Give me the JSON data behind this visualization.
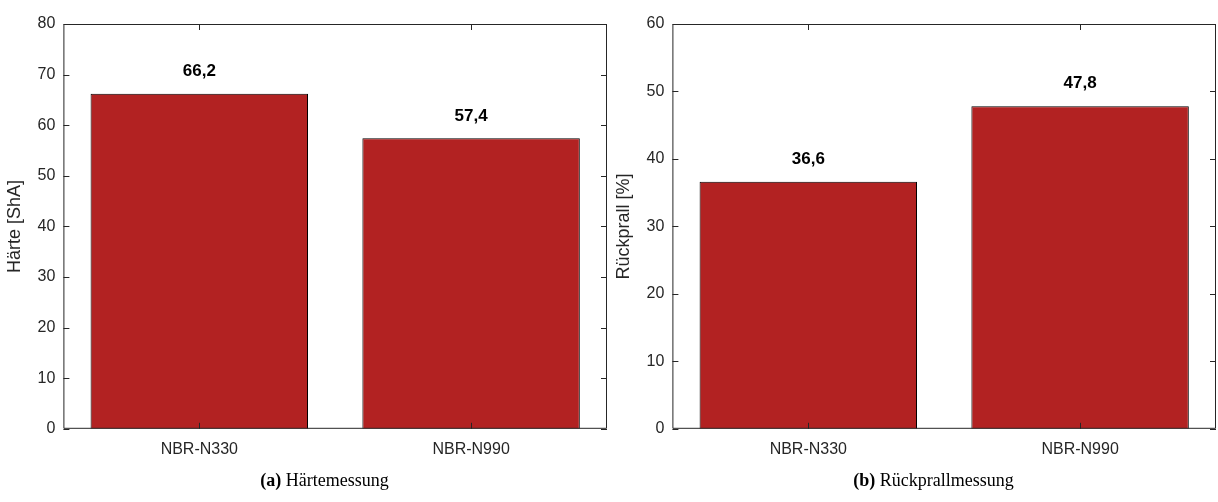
{
  "chart_data": [
    {
      "type": "bar",
      "ylabel": "Härte [ShA]",
      "categories": [
        "NBR-N330",
        "NBR-N990"
      ],
      "values": [
        66.2,
        57.4
      ],
      "value_labels": [
        "66,2",
        "57,4"
      ],
      "color": "#b22222",
      "ylim": [
        0,
        80
      ],
      "yticks": [
        0,
        10,
        20,
        30,
        40,
        50,
        60,
        70,
        80
      ],
      "grid": false,
      "legend": false,
      "annotations": [
        "(a) Härtemessung"
      ]
    },
    {
      "type": "bar",
      "ylabel": "Rückprall [%]",
      "categories": [
        "NBR-N330",
        "NBR-N990"
      ],
      "values": [
        36.6,
        47.8
      ],
      "value_labels": [
        "36,6",
        "47,8"
      ],
      "color": "#b22222",
      "ylim": [
        0,
        60
      ],
      "yticks": [
        0,
        10,
        20,
        30,
        40,
        50,
        60
      ],
      "grid": false,
      "legend": false,
      "annotations": [
        "(b) Rückprallmessung"
      ]
    }
  ]
}
